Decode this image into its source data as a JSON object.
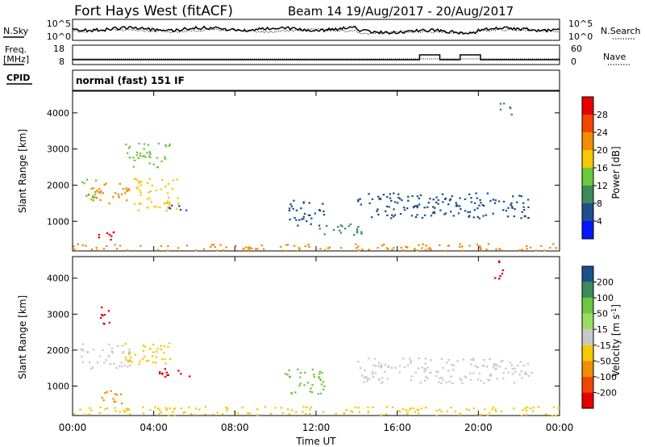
{
  "header": {
    "station": "Fort Hays West (fitACF)",
    "beam_info": "Beam 14  19/Aug/2017 - 20/Aug/2017"
  },
  "noise_panel": {
    "left_label": "N.Sky",
    "right_label": "N.Search",
    "left_ticks": [
      "10^5",
      "10^0"
    ],
    "right_ticks": [
      "10^5",
      "10^0"
    ]
  },
  "freq_panel": {
    "left_label_1": "Freq.",
    "left_label_2": "[MHz]",
    "right_label": "Nave",
    "left_ticks": [
      "18",
      "8"
    ],
    "right_ticks": [
      "60",
      "0"
    ]
  },
  "cpid": {
    "label": "CPID",
    "value": "normal (fast) 151 IF"
  },
  "colors": {
    "red": "#e60000",
    "orange": "#f28c00",
    "yellow": "#f5c800",
    "green_light": "#6cc83c",
    "green_dark": "#3c8c5a",
    "blue_dark": "#1e508c",
    "blue": "#0019ff",
    "grey": "#c8c8c8"
  },
  "chart_data": [
    {
      "type": "heatmap",
      "name": "power",
      "ylabel": "Slant Range [km]",
      "ylim": [
        180,
        4600
      ],
      "yticks": [
        1000,
        2000,
        3000,
        4000
      ],
      "xlim": [
        0,
        24
      ],
      "colorbar": {
        "label": "Power [dB]",
        "ticks": [
          "28",
          "24",
          "20",
          "16",
          "12",
          "8",
          "4"
        ],
        "colors": [
          "#e60000",
          "#f24600",
          "#f28c00",
          "#f5c800",
          "#6cc83c",
          "#3c8c5a",
          "#1e508c",
          "#0019ff"
        ]
      },
      "regions": [
        {
          "t0": 0.6,
          "t1": 2.8,
          "r0": 1500,
          "r1": 2100,
          "color": "orange"
        },
        {
          "t0": 1.2,
          "t1": 2.0,
          "r0": 500,
          "r1": 900,
          "color": "red"
        },
        {
          "t0": 0.4,
          "t1": 1.2,
          "r0": 1600,
          "r1": 2200,
          "color": "green_light"
        },
        {
          "t0": 3.0,
          "t1": 5.2,
          "r0": 1300,
          "r1": 2200,
          "color": "yellow"
        },
        {
          "t0": 4.6,
          "t1": 5.8,
          "r0": 1300,
          "r1": 1500,
          "color": "blue_dark"
        },
        {
          "t0": 2.5,
          "t1": 4.8,
          "r0": 2500,
          "r1": 3200,
          "color": "green_light"
        },
        {
          "t0": 10.6,
          "t1": 12.4,
          "r0": 900,
          "r1": 1600,
          "color": "blue_dark"
        },
        {
          "t0": 12.0,
          "t1": 14.2,
          "r0": 600,
          "r1": 950,
          "color": "green_dark"
        },
        {
          "t0": 14.0,
          "t1": 22.6,
          "r0": 1100,
          "r1": 1800,
          "color": "blue_dark"
        },
        {
          "t0": 21.0,
          "t1": 21.6,
          "r0": 3900,
          "r1": 4300,
          "color": "green_dark"
        },
        {
          "t0": 0.0,
          "t1": 24.0,
          "r0": 200,
          "r1": 400,
          "color": "orange"
        }
      ]
    },
    {
      "type": "heatmap",
      "name": "velocity",
      "ylabel": "Slant Range [km]",
      "xlabel": "Time UT",
      "ylim": [
        180,
        4600
      ],
      "yticks": [
        1000,
        2000,
        3000,
        4000
      ],
      "xlim": [
        0,
        24
      ],
      "xticks": [
        "00:00",
        "04:00",
        "08:00",
        "12:00",
        "16:00",
        "20:00",
        "00:00"
      ],
      "colorbar": {
        "label": "Velocity [m s^-1]",
        "ticks": [
          "200",
          "100",
          "50",
          "15",
          "-15",
          "-50",
          "-100",
          "-200"
        ],
        "colors": [
          "#1e508c",
          "#3c8c5a",
          "#6cc83c",
          "#9adc64",
          "#c8c8c8",
          "#f5c800",
          "#f28c00",
          "#f24600",
          "#e60000"
        ]
      },
      "regions": [
        {
          "t0": 0.3,
          "t1": 2.8,
          "r0": 1500,
          "r1": 2200,
          "color": "grey"
        },
        {
          "t0": 1.2,
          "t1": 2.4,
          "r0": 500,
          "r1": 900,
          "color": "orange"
        },
        {
          "t0": 1.2,
          "t1": 1.8,
          "r0": 2700,
          "r1": 3300,
          "color": "red"
        },
        {
          "t0": 2.5,
          "t1": 4.8,
          "r0": 1600,
          "r1": 2300,
          "color": "yellow"
        },
        {
          "t0": 4.2,
          "t1": 5.8,
          "r0": 1200,
          "r1": 1500,
          "color": "red"
        },
        {
          "t0": 10.4,
          "t1": 12.4,
          "r0": 800,
          "r1": 1500,
          "color": "green_light"
        },
        {
          "t0": 14.0,
          "t1": 22.6,
          "r0": 1100,
          "r1": 1800,
          "color": "grey"
        },
        {
          "t0": 20.6,
          "t1": 21.2,
          "r0": 4000,
          "r1": 4500,
          "color": "red"
        },
        {
          "t0": 0.0,
          "t1": 24.0,
          "r0": 200,
          "r1": 450,
          "color": "yellow"
        }
      ]
    }
  ]
}
